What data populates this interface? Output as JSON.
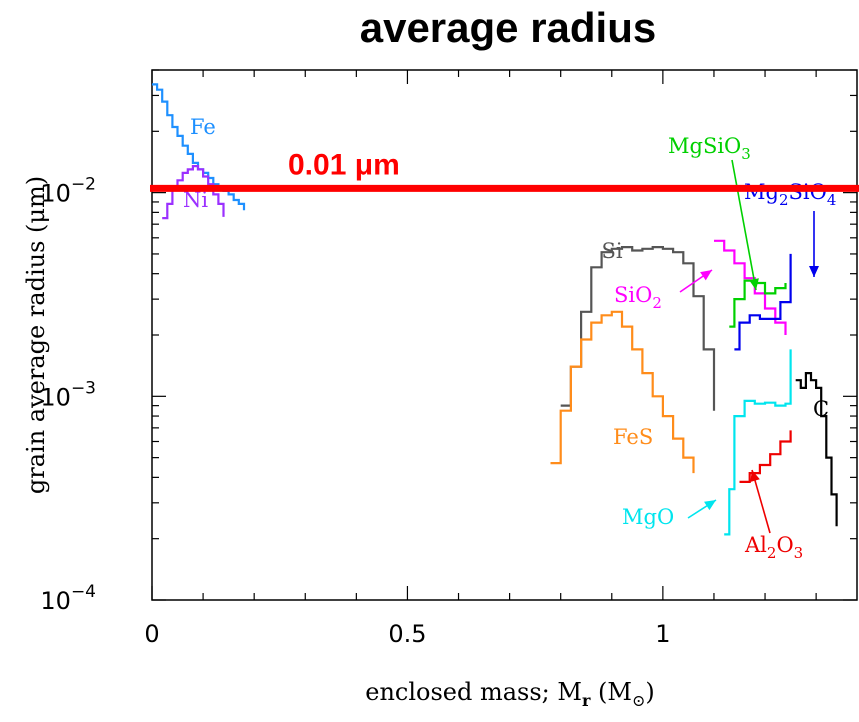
{
  "chart_data": {
    "type": "line",
    "title": "average radius",
    "xlabel": "enclosed mass; M_r (M_⊙)",
    "xlabel_parts": {
      "main": "enclosed mass; M",
      "sub": "r",
      "paren": " (M",
      "sub2": "⊙",
      "close": ")"
    },
    "ylabel": "grain average radius (μm)",
    "xlim": [
      0,
      1.38
    ],
    "ylim": [
      0.0001,
      0.04
    ],
    "yscale": "log",
    "x_ticks": [
      {
        "value": 0,
        "label": "0"
      },
      {
        "value": 0.5,
        "label": "0.5"
      },
      {
        "value": 1,
        "label": "1"
      }
    ],
    "y_ticks": [
      {
        "value": 0.0001,
        "base": "10",
        "exp": "−4"
      },
      {
        "value": 0.001,
        "base": "10",
        "exp": "−3"
      },
      {
        "value": 0.01,
        "base": "10",
        "exp": "−2"
      }
    ],
    "reference_line": {
      "value": 0.0105,
      "label": "0.01 μm",
      "color": "#ff0000"
    },
    "series": [
      {
        "name": "Fe",
        "label_parts": [
          [
            "Fe",
            ""
          ]
        ],
        "color": "#1e90ff",
        "x": [
          0.0,
          0.01,
          0.02,
          0.03,
          0.04,
          0.05,
          0.06,
          0.07,
          0.08,
          0.09,
          0.1,
          0.11,
          0.12,
          0.13,
          0.14,
          0.15,
          0.16,
          0.17,
          0.18
        ],
        "y": [
          0.034,
          0.032,
          0.028,
          0.024,
          0.021,
          0.019,
          0.017,
          0.0155,
          0.014,
          0.013,
          0.0125,
          0.0118,
          0.011,
          0.0105,
          0.0102,
          0.0098,
          0.0092,
          0.0088,
          0.0082
        ]
      },
      {
        "name": "Ni",
        "label_parts": [
          [
            "Ni",
            ""
          ]
        ],
        "color": "#9b30ff",
        "x": [
          0.02,
          0.03,
          0.04,
          0.05,
          0.06,
          0.07,
          0.08,
          0.09,
          0.1,
          0.11,
          0.12,
          0.13,
          0.14
        ],
        "y": [
          0.0075,
          0.0088,
          0.0105,
          0.0115,
          0.0125,
          0.013,
          0.0135,
          0.013,
          0.012,
          0.011,
          0.0098,
          0.0088,
          0.0076
        ]
      },
      {
        "name": "Si",
        "label_parts": [
          [
            "Si",
            ""
          ]
        ],
        "color": "#555555",
        "x": [
          0.8,
          0.82,
          0.84,
          0.86,
          0.88,
          0.9,
          0.92,
          0.94,
          0.96,
          0.98,
          1.0,
          1.02,
          1.04,
          1.06,
          1.08,
          1.1
        ],
        "y": [
          0.0009,
          0.0014,
          0.0026,
          0.0043,
          0.0051,
          0.0053,
          0.0054,
          0.0052,
          0.0053,
          0.0054,
          0.0053,
          0.0051,
          0.0045,
          0.0031,
          0.0017,
          0.00085
        ]
      },
      {
        "name": "FeS",
        "label_parts": [
          [
            "FeS",
            ""
          ]
        ],
        "color": "#ff8c1a",
        "x": [
          0.78,
          0.8,
          0.82,
          0.84,
          0.86,
          0.88,
          0.9,
          0.92,
          0.94,
          0.96,
          0.98,
          1.0,
          1.02,
          1.04,
          1.06
        ],
        "y": [
          0.00047,
          0.00085,
          0.0014,
          0.0019,
          0.0023,
          0.0025,
          0.0026,
          0.0022,
          0.0017,
          0.0013,
          0.001,
          0.0008,
          0.00062,
          0.0005,
          0.00042
        ]
      },
      {
        "name": "SiO2",
        "label_parts": [
          [
            "SiO",
            ""
          ],
          [
            "2",
            "sub"
          ]
        ],
        "color": "#ff00ff",
        "x": [
          1.1,
          1.12,
          1.14,
          1.16,
          1.18,
          1.2,
          1.22,
          1.24
        ],
        "y": [
          0.0058,
          0.0052,
          0.0045,
          0.0038,
          0.0032,
          0.0027,
          0.0023,
          0.002
        ]
      },
      {
        "name": "MgSiO3",
        "label_parts": [
          [
            "MgSiO",
            ""
          ],
          [
            "3",
            "sub"
          ]
        ],
        "color": "#00d000",
        "x": [
          1.13,
          1.14,
          1.16,
          1.18,
          1.2,
          1.22,
          1.24
        ],
        "y": [
          0.0022,
          0.003,
          0.0037,
          0.0036,
          0.0032,
          0.0034,
          0.0036
        ]
      },
      {
        "name": "Mg2SiO4",
        "label_parts": [
          [
            "Mg",
            ""
          ],
          [
            "2",
            "sub"
          ],
          [
            "SiO",
            ""
          ],
          [
            "4",
            "sub"
          ]
        ],
        "color": "#0000ee",
        "x": [
          1.14,
          1.15,
          1.17,
          1.19,
          1.21,
          1.23,
          1.25
        ],
        "y": [
          0.0017,
          0.0023,
          0.0025,
          0.0024,
          0.0024,
          0.0029,
          0.005
        ]
      },
      {
        "name": "MgO",
        "label_parts": [
          [
            "MgO",
            ""
          ]
        ],
        "color": "#00e5ee",
        "x": [
          1.12,
          1.13,
          1.14,
          1.16,
          1.18,
          1.2,
          1.22,
          1.24,
          1.25
        ],
        "y": [
          0.00021,
          0.00035,
          0.0008,
          0.00095,
          0.00092,
          0.00093,
          0.0009,
          0.00092,
          0.0017
        ]
      },
      {
        "name": "Al2O3",
        "label_parts": [
          [
            "Al",
            ""
          ],
          [
            "2",
            "sub"
          ],
          [
            "O",
            ""
          ],
          [
            "3",
            "sub"
          ]
        ],
        "color": "#ee0000",
        "x": [
          1.15,
          1.17,
          1.19,
          1.21,
          1.23,
          1.25
        ],
        "y": [
          0.00038,
          0.00042,
          0.00046,
          0.00052,
          0.0006,
          0.00068
        ]
      },
      {
        "name": "C",
        "label_parts": [
          [
            "C",
            ""
          ]
        ],
        "color": "#000000",
        "x": [
          1.26,
          1.27,
          1.28,
          1.29,
          1.3,
          1.31,
          1.32,
          1.33,
          1.34
        ],
        "y": [
          0.0012,
          0.0011,
          0.0013,
          0.0012,
          0.0011,
          0.0008,
          0.0005,
          0.00033,
          0.00023
        ]
      }
    ]
  }
}
